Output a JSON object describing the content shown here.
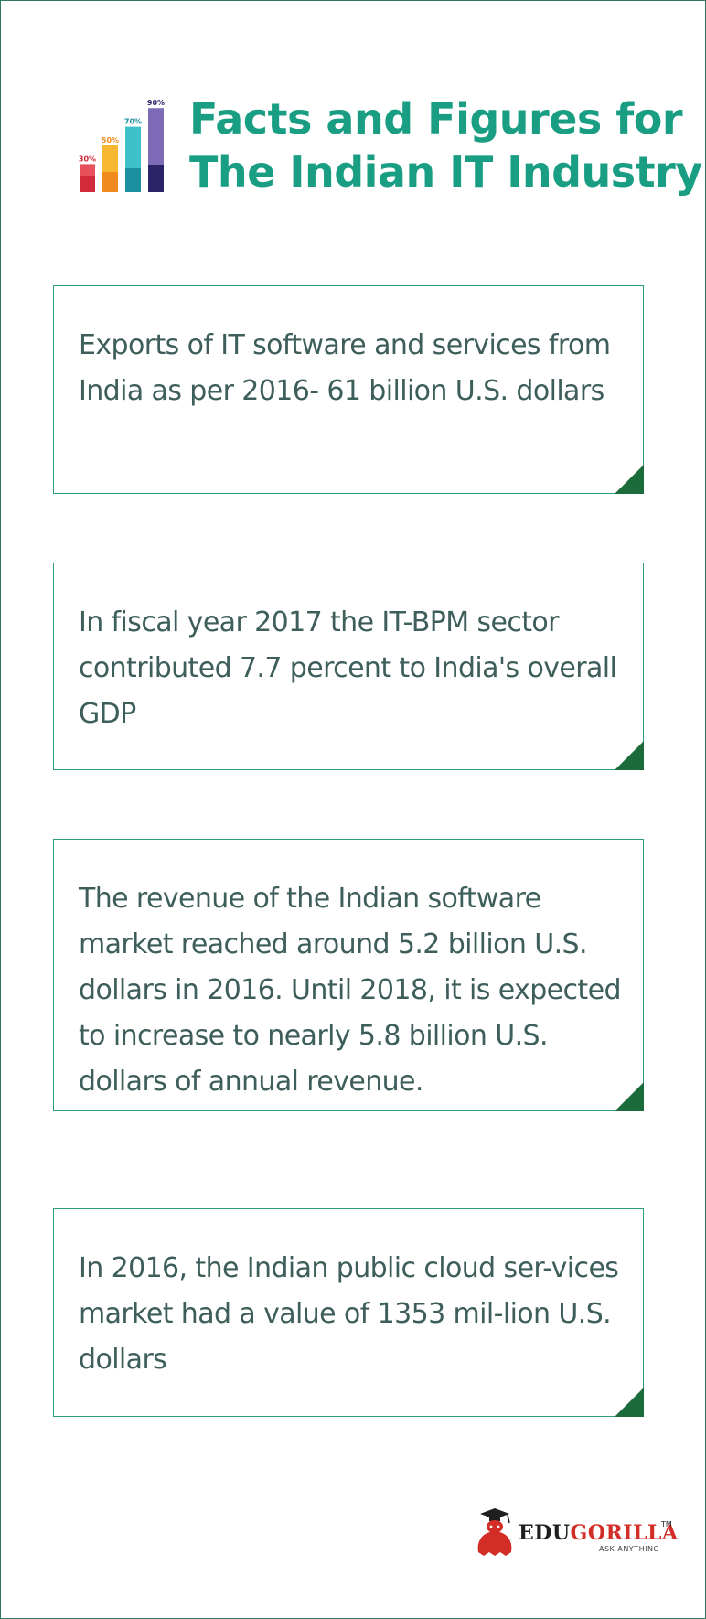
{
  "header": {
    "title_line1": "Facts and Figures for",
    "title_line2": "The Indian IT Industry",
    "bar_icon": {
      "icon": "bar-chart-icon",
      "bars": [
        {
          "label": "30%",
          "value": 30,
          "color": "#e8505b",
          "dark": "#d12a3a"
        },
        {
          "label": "50%",
          "value": 50,
          "color": "#f7b731",
          "dark": "#f08a1e"
        },
        {
          "label": "70%",
          "value": 70,
          "color": "#3fc1c9",
          "dark": "#1a8fa0"
        },
        {
          "label": "90%",
          "value": 90,
          "color": "#7e6bb8",
          "dark": "#2a2366"
        }
      ]
    }
  },
  "facts": [
    {
      "text": "Exports of IT software and services from India as per 2016- 61 billion U.S. dollars"
    },
    {
      "text": "In fiscal year 2017 the IT-BPM sector contributed 7.7 percent to India's overall GDP"
    },
    {
      "text": "The revenue of the Indian software market reached around 5.2 billion U.S. dollars in 2016. Until 2018, it is expected to increase to nearly 5.8 billion U.S. dollars of annual revenue."
    },
    {
      "text": "In 2016, the Indian public cloud ser-vices market had a value of 1353 mil-lion U.S. dollars"
    }
  ],
  "brand": {
    "icon": "gorilla-graduate-icon",
    "name_part1": "EDU",
    "name_part2": "GORILLA",
    "trademark": "TM",
    "tagline": "ASK ANYTHING",
    "colors": {
      "accent": "#d32d27",
      "dark": "#1f1f1f"
    }
  },
  "colors": {
    "title": "#1a9e83",
    "card_border": "#2e9e7a",
    "card_corner": "#1c6b3a",
    "text": "#3d5e5a"
  }
}
